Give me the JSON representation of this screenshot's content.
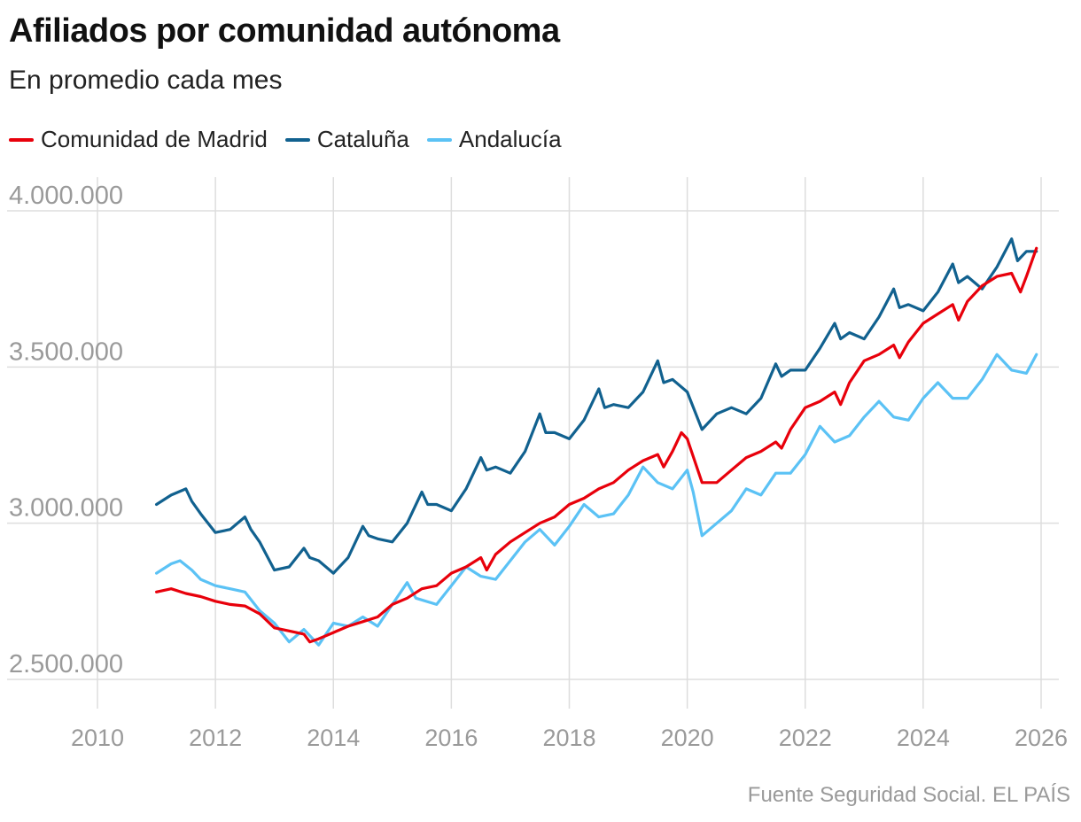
{
  "title": "Afiliados por comunidad autónoma",
  "subtitle": "En promedio cada mes",
  "source": "Fuente Seguridad Social. EL PAÍS",
  "colors": {
    "madrid": "#e8000b",
    "cataluna": "#11618f",
    "andalucia": "#5bc2f5",
    "grid": "#dddddd",
    "tick": "#9a9a9a"
  },
  "chart_data": {
    "type": "line",
    "title": "Afiliados por comunidad autónoma",
    "subtitle": "En promedio cada mes",
    "xlabel": "",
    "ylabel": "",
    "xlim": [
      2010,
      2026
    ],
    "ylim": [
      2400000,
      4000000
    ],
    "xticks": [
      2010,
      2012,
      2014,
      2016,
      2018,
      2020,
      2022,
      2024,
      2026
    ],
    "xtick_labels": [
      "2010",
      "2012",
      "2014",
      "2016",
      "2018",
      "2020",
      "2022",
      "2024",
      "2026"
    ],
    "yticks": [
      2500000,
      3000000,
      3500000,
      4000000
    ],
    "ytick_labels": [
      "2.500.000",
      "3.000.000",
      "3.500.000",
      "4.000.000"
    ],
    "grid": true,
    "legend_position": "top-left",
    "series": [
      {
        "name": "Comunidad de Madrid",
        "color": "#e8000b",
        "points": [
          [
            2011.0,
            2780000
          ],
          [
            2011.25,
            2790000
          ],
          [
            2011.5,
            2775000
          ],
          [
            2011.75,
            2765000
          ],
          [
            2012.0,
            2750000
          ],
          [
            2012.25,
            2740000
          ],
          [
            2012.5,
            2735000
          ],
          [
            2012.75,
            2710000
          ],
          [
            2013.0,
            2665000
          ],
          [
            2013.25,
            2655000
          ],
          [
            2013.5,
            2645000
          ],
          [
            2013.6,
            2620000
          ],
          [
            2013.75,
            2630000
          ],
          [
            2014.0,
            2650000
          ],
          [
            2014.25,
            2670000
          ],
          [
            2014.5,
            2685000
          ],
          [
            2014.75,
            2700000
          ],
          [
            2015.0,
            2740000
          ],
          [
            2015.25,
            2760000
          ],
          [
            2015.5,
            2790000
          ],
          [
            2015.75,
            2800000
          ],
          [
            2016.0,
            2840000
          ],
          [
            2016.25,
            2860000
          ],
          [
            2016.5,
            2890000
          ],
          [
            2016.6,
            2850000
          ],
          [
            2016.75,
            2900000
          ],
          [
            2017.0,
            2940000
          ],
          [
            2017.25,
            2970000
          ],
          [
            2017.5,
            3000000
          ],
          [
            2017.75,
            3020000
          ],
          [
            2018.0,
            3060000
          ],
          [
            2018.25,
            3080000
          ],
          [
            2018.5,
            3110000
          ],
          [
            2018.75,
            3130000
          ],
          [
            2019.0,
            3170000
          ],
          [
            2019.25,
            3200000
          ],
          [
            2019.5,
            3220000
          ],
          [
            2019.6,
            3180000
          ],
          [
            2019.75,
            3230000
          ],
          [
            2019.9,
            3290000
          ],
          [
            2020.0,
            3270000
          ],
          [
            2020.25,
            3130000
          ],
          [
            2020.5,
            3130000
          ],
          [
            2020.75,
            3170000
          ],
          [
            2021.0,
            3210000
          ],
          [
            2021.25,
            3230000
          ],
          [
            2021.5,
            3260000
          ],
          [
            2021.6,
            3240000
          ],
          [
            2021.75,
            3300000
          ],
          [
            2022.0,
            3370000
          ],
          [
            2022.25,
            3390000
          ],
          [
            2022.5,
            3420000
          ],
          [
            2022.6,
            3380000
          ],
          [
            2022.75,
            3450000
          ],
          [
            2023.0,
            3520000
          ],
          [
            2023.25,
            3540000
          ],
          [
            2023.5,
            3570000
          ],
          [
            2023.6,
            3530000
          ],
          [
            2023.75,
            3580000
          ],
          [
            2024.0,
            3640000
          ],
          [
            2024.25,
            3670000
          ],
          [
            2024.5,
            3700000
          ],
          [
            2024.6,
            3650000
          ],
          [
            2024.75,
            3710000
          ],
          [
            2025.0,
            3760000
          ],
          [
            2025.25,
            3790000
          ],
          [
            2025.5,
            3800000
          ],
          [
            2025.65,
            3740000
          ],
          [
            2025.75,
            3790000
          ],
          [
            2025.92,
            3880000
          ]
        ]
      },
      {
        "name": "Cataluña",
        "color": "#11618f",
        "points": [
          [
            2011.0,
            3060000
          ],
          [
            2011.25,
            3090000
          ],
          [
            2011.5,
            3110000
          ],
          [
            2011.6,
            3070000
          ],
          [
            2011.75,
            3030000
          ],
          [
            2012.0,
            2970000
          ],
          [
            2012.25,
            2980000
          ],
          [
            2012.5,
            3020000
          ],
          [
            2012.6,
            2980000
          ],
          [
            2012.75,
            2940000
          ],
          [
            2013.0,
            2850000
          ],
          [
            2013.25,
            2860000
          ],
          [
            2013.5,
            2920000
          ],
          [
            2013.6,
            2890000
          ],
          [
            2013.75,
            2880000
          ],
          [
            2014.0,
            2840000
          ],
          [
            2014.25,
            2890000
          ],
          [
            2014.5,
            2990000
          ],
          [
            2014.6,
            2960000
          ],
          [
            2014.75,
            2950000
          ],
          [
            2015.0,
            2940000
          ],
          [
            2015.25,
            3000000
          ],
          [
            2015.5,
            3100000
          ],
          [
            2015.6,
            3060000
          ],
          [
            2015.75,
            3060000
          ],
          [
            2016.0,
            3040000
          ],
          [
            2016.25,
            3110000
          ],
          [
            2016.5,
            3210000
          ],
          [
            2016.6,
            3170000
          ],
          [
            2016.75,
            3180000
          ],
          [
            2017.0,
            3160000
          ],
          [
            2017.25,
            3230000
          ],
          [
            2017.5,
            3350000
          ],
          [
            2017.6,
            3290000
          ],
          [
            2017.75,
            3290000
          ],
          [
            2018.0,
            3270000
          ],
          [
            2018.25,
            3330000
          ],
          [
            2018.5,
            3430000
          ],
          [
            2018.6,
            3370000
          ],
          [
            2018.75,
            3380000
          ],
          [
            2019.0,
            3370000
          ],
          [
            2019.25,
            3420000
          ],
          [
            2019.5,
            3520000
          ],
          [
            2019.6,
            3450000
          ],
          [
            2019.75,
            3460000
          ],
          [
            2020.0,
            3420000
          ],
          [
            2020.25,
            3300000
          ],
          [
            2020.5,
            3350000
          ],
          [
            2020.75,
            3370000
          ],
          [
            2021.0,
            3350000
          ],
          [
            2021.25,
            3400000
          ],
          [
            2021.5,
            3510000
          ],
          [
            2021.6,
            3470000
          ],
          [
            2021.75,
            3490000
          ],
          [
            2022.0,
            3490000
          ],
          [
            2022.25,
            3560000
          ],
          [
            2022.5,
            3640000
          ],
          [
            2022.6,
            3590000
          ],
          [
            2022.75,
            3610000
          ],
          [
            2023.0,
            3590000
          ],
          [
            2023.25,
            3660000
          ],
          [
            2023.5,
            3750000
          ],
          [
            2023.6,
            3690000
          ],
          [
            2023.75,
            3700000
          ],
          [
            2024.0,
            3680000
          ],
          [
            2024.25,
            3740000
          ],
          [
            2024.5,
            3830000
          ],
          [
            2024.6,
            3770000
          ],
          [
            2024.75,
            3790000
          ],
          [
            2025.0,
            3750000
          ],
          [
            2025.25,
            3820000
          ],
          [
            2025.5,
            3910000
          ],
          [
            2025.6,
            3840000
          ],
          [
            2025.75,
            3870000
          ],
          [
            2025.92,
            3870000
          ]
        ]
      },
      {
        "name": "Andalucía",
        "color": "#5bc2f5",
        "points": [
          [
            2011.0,
            2840000
          ],
          [
            2011.25,
            2870000
          ],
          [
            2011.4,
            2880000
          ],
          [
            2011.6,
            2850000
          ],
          [
            2011.75,
            2820000
          ],
          [
            2012.0,
            2800000
          ],
          [
            2012.25,
            2790000
          ],
          [
            2012.5,
            2780000
          ],
          [
            2012.75,
            2720000
          ],
          [
            2013.0,
            2680000
          ],
          [
            2013.25,
            2620000
          ],
          [
            2013.5,
            2660000
          ],
          [
            2013.75,
            2610000
          ],
          [
            2014.0,
            2680000
          ],
          [
            2014.25,
            2670000
          ],
          [
            2014.5,
            2700000
          ],
          [
            2014.75,
            2670000
          ],
          [
            2015.0,
            2740000
          ],
          [
            2015.25,
            2810000
          ],
          [
            2015.4,
            2760000
          ],
          [
            2015.75,
            2740000
          ],
          [
            2016.0,
            2800000
          ],
          [
            2016.25,
            2860000
          ],
          [
            2016.5,
            2830000
          ],
          [
            2016.75,
            2820000
          ],
          [
            2017.0,
            2880000
          ],
          [
            2017.25,
            2940000
          ],
          [
            2017.5,
            2980000
          ],
          [
            2017.75,
            2930000
          ],
          [
            2018.0,
            2990000
          ],
          [
            2018.25,
            3060000
          ],
          [
            2018.5,
            3020000
          ],
          [
            2018.75,
            3030000
          ],
          [
            2019.0,
            3090000
          ],
          [
            2019.25,
            3180000
          ],
          [
            2019.5,
            3130000
          ],
          [
            2019.75,
            3110000
          ],
          [
            2020.0,
            3170000
          ],
          [
            2020.1,
            3100000
          ],
          [
            2020.25,
            2960000
          ],
          [
            2020.5,
            3000000
          ],
          [
            2020.75,
            3040000
          ],
          [
            2021.0,
            3110000
          ],
          [
            2021.25,
            3090000
          ],
          [
            2021.5,
            3160000
          ],
          [
            2021.75,
            3160000
          ],
          [
            2022.0,
            3220000
          ],
          [
            2022.25,
            3310000
          ],
          [
            2022.5,
            3260000
          ],
          [
            2022.75,
            3280000
          ],
          [
            2023.0,
            3340000
          ],
          [
            2023.25,
            3390000
          ],
          [
            2023.5,
            3340000
          ],
          [
            2023.75,
            3330000
          ],
          [
            2024.0,
            3400000
          ],
          [
            2024.25,
            3450000
          ],
          [
            2024.5,
            3400000
          ],
          [
            2024.75,
            3400000
          ],
          [
            2025.0,
            3460000
          ],
          [
            2025.25,
            3540000
          ],
          [
            2025.5,
            3490000
          ],
          [
            2025.75,
            3480000
          ],
          [
            2025.92,
            3540000
          ]
        ]
      }
    ]
  }
}
